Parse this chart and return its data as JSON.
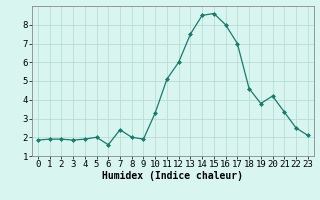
{
  "x": [
    0,
    1,
    2,
    3,
    4,
    5,
    6,
    7,
    8,
    9,
    10,
    11,
    12,
    13,
    14,
    15,
    16,
    17,
    18,
    19,
    20,
    21,
    22,
    23
  ],
  "y": [
    1.85,
    1.9,
    1.9,
    1.85,
    1.9,
    2.0,
    1.6,
    2.4,
    2.0,
    1.9,
    3.3,
    5.1,
    6.0,
    7.5,
    8.5,
    8.6,
    8.0,
    7.0,
    4.6,
    3.8,
    4.2,
    3.35,
    2.5,
    2.1
  ],
  "line_color": "#1a7a6e",
  "marker": "D",
  "marker_size": 2.0,
  "bg_color": "#d8f5f0",
  "grid_color": "#b8ddd8",
  "xlabel": "Humidex (Indice chaleur)",
  "ylim": [
    1,
    9
  ],
  "xlim": [
    -0.5,
    23.5
  ],
  "yticks": [
    1,
    2,
    3,
    4,
    5,
    6,
    7,
    8
  ],
  "xticks": [
    0,
    1,
    2,
    3,
    4,
    5,
    6,
    7,
    8,
    9,
    10,
    11,
    12,
    13,
    14,
    15,
    16,
    17,
    18,
    19,
    20,
    21,
    22,
    23
  ],
  "xlabel_fontsize": 7,
  "tick_fontsize": 6.5
}
